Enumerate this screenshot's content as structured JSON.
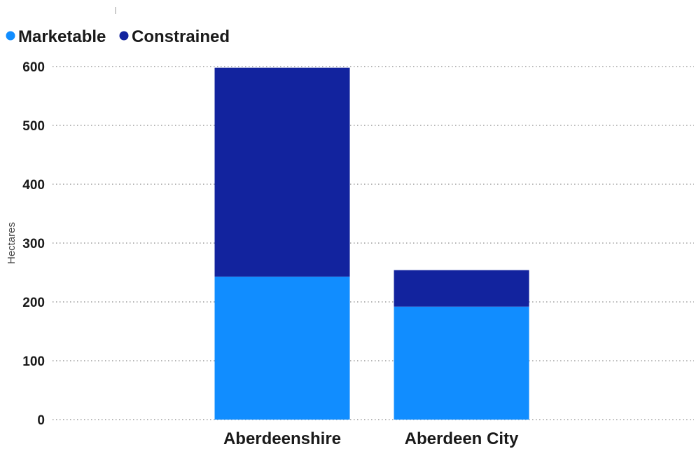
{
  "chart_data": {
    "type": "bar",
    "stacked": true,
    "categories": [
      "Aberdeenshire",
      "Aberdeen City"
    ],
    "series": [
      {
        "name": "Marketable",
        "values": [
          243,
          192
        ],
        "color": "#118DFF"
      },
      {
        "name": "Constrained",
        "values": [
          355,
          62
        ],
        "color": "#12239E"
      }
    ],
    "title": "",
    "xlabel": "",
    "ylabel": "Hectares",
    "ylim": [
      0,
      600
    ],
    "yticks": [
      0,
      100,
      200,
      300,
      400,
      500,
      600
    ],
    "grid": true,
    "legend": "top-left"
  }
}
